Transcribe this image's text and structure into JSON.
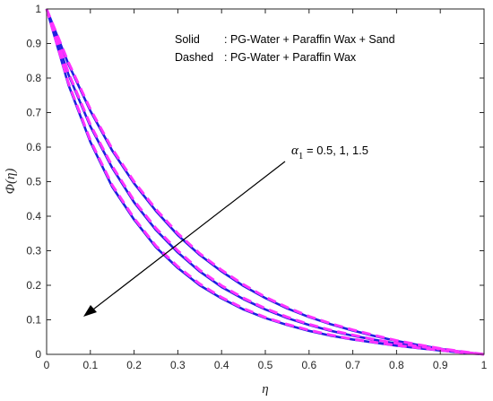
{
  "chart_data": {
    "type": "line",
    "xlabel": "η",
    "ylabel": "Φ(η)",
    "xlim": [
      0,
      1
    ],
    "ylim": [
      0,
      1
    ],
    "x_ticks": [
      "0",
      "0.1",
      "0.2",
      "0.3",
      "0.4",
      "0.5",
      "0.6",
      "0.7",
      "0.8",
      "0.9",
      "1"
    ],
    "y_ticks": [
      "0",
      "0.1",
      "0.2",
      "0.3",
      "0.4",
      "0.5",
      "0.6",
      "0.7",
      "0.8",
      "0.9",
      "1"
    ],
    "grid": false,
    "legend": {
      "placement": "top-right",
      "line1_key": "Solid",
      "line1_value": ": PG-Water + Paraffin Wax + Sand",
      "line2_key": "Dashed",
      "line2_value": ": PG-Water + Paraffin Wax"
    },
    "annotation": {
      "symbol": "α",
      "subscript": "1",
      "text": " = 0.5, 1, 1.5"
    },
    "colors": {
      "solid": "#1f1fe0",
      "dashed": "#ff33ff"
    },
    "x": [
      0,
      0.05,
      0.1,
      0.15,
      0.2,
      0.25,
      0.3,
      0.35,
      0.4,
      0.45,
      0.5,
      0.55,
      0.6,
      0.65,
      0.7,
      0.75,
      0.8,
      0.85,
      0.9,
      0.95,
      1
    ],
    "series": [
      {
        "style": "solid",
        "values": [
          1,
          0.78,
          0.615,
          0.485,
          0.39,
          0.31,
          0.25,
          0.2,
          0.162,
          0.13,
          0.105,
          0.085,
          0.068,
          0.054,
          0.043,
          0.034,
          0.025,
          0.018,
          0.011,
          0.005,
          0
        ]
      },
      {
        "style": "solid",
        "values": [
          1,
          0.81,
          0.66,
          0.54,
          0.44,
          0.36,
          0.295,
          0.24,
          0.195,
          0.16,
          0.13,
          0.105,
          0.085,
          0.068,
          0.054,
          0.042,
          0.031,
          0.022,
          0.014,
          0.006,
          0
        ]
      },
      {
        "style": "solid",
        "values": [
          1,
          0.84,
          0.705,
          0.59,
          0.495,
          0.415,
          0.345,
          0.288,
          0.24,
          0.198,
          0.163,
          0.133,
          0.108,
          0.087,
          0.069,
          0.053,
          0.039,
          0.027,
          0.016,
          0.007,
          0
        ]
      },
      {
        "style": "dashed",
        "values": [
          1,
          0.785,
          0.62,
          0.49,
          0.394,
          0.314,
          0.254,
          0.204,
          0.165,
          0.133,
          0.107,
          0.087,
          0.07,
          0.056,
          0.044,
          0.035,
          0.026,
          0.019,
          0.012,
          0.005,
          0
        ]
      },
      {
        "style": "dashed",
        "values": [
          1,
          0.815,
          0.665,
          0.545,
          0.445,
          0.365,
          0.3,
          0.244,
          0.199,
          0.163,
          0.133,
          0.108,
          0.087,
          0.07,
          0.056,
          0.043,
          0.032,
          0.023,
          0.015,
          0.007,
          0
        ]
      },
      {
        "style": "dashed",
        "values": [
          1,
          0.845,
          0.71,
          0.595,
          0.5,
          0.42,
          0.35,
          0.292,
          0.244,
          0.202,
          0.166,
          0.136,
          0.11,
          0.089,
          0.071,
          0.055,
          0.04,
          0.028,
          0.017,
          0.008,
          0
        ]
      }
    ]
  }
}
